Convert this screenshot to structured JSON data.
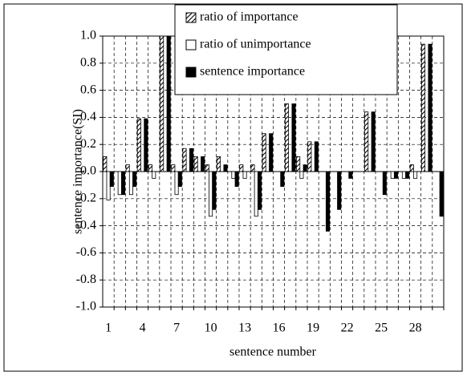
{
  "chart_data": {
    "type": "bar",
    "y_label": "sentence importance(SI)",
    "x_label": "sentence number",
    "categories": [
      "1",
      null,
      null,
      "4",
      null,
      null,
      "7",
      null,
      null,
      "10",
      null,
      null,
      "13",
      null,
      null,
      "16",
      null,
      null,
      "19",
      null,
      null,
      "22",
      null,
      null,
      "25",
      null,
      null,
      "28",
      null,
      null
    ],
    "series": [
      {
        "name": "ratio of importance",
        "color": "#000000",
        "pattern": "hatched",
        "values": [
          0.11,
          0,
          0.05,
          0.39,
          0.05,
          1.0,
          0.05,
          0.17,
          0.11,
          0.05,
          0.11,
          0,
          0.05,
          0.05,
          0.28,
          0,
          0.5,
          0.11,
          0.22,
          0,
          0,
          0,
          0,
          0.44,
          0,
          0,
          0,
          0.05,
          0.94,
          0
        ]
      },
      {
        "name": "ratio of unimportance",
        "color": "#ffffff",
        "pattern": "solid",
        "values": [
          -0.21,
          -0.17,
          -0.17,
          0,
          -0.05,
          0,
          -0.17,
          0,
          0,
          -0.33,
          0,
          -0.05,
          -0.05,
          -0.33,
          0,
          0,
          0,
          -0.05,
          0,
          0,
          0,
          0,
          0,
          0,
          0,
          -0.05,
          -0.05,
          -0.05,
          0,
          0
        ]
      },
      {
        "name": "sentence importance",
        "color": "#000000",
        "pattern": "solid",
        "values": [
          -0.11,
          -0.17,
          -0.11,
          0.39,
          0,
          1.0,
          -0.11,
          0.17,
          0.11,
          -0.28,
          0.05,
          -0.11,
          0,
          -0.28,
          0.28,
          -0.11,
          0.5,
          0.05,
          0.22,
          -0.44,
          -0.28,
          -0.05,
          0,
          0.44,
          -0.17,
          -0.05,
          -0.05,
          0,
          0.94,
          -0.33
        ]
      }
    ],
    "ylim": [
      -1.0,
      1.0
    ],
    "yticks": [
      {
        "value": -1.0,
        "label": "-1.0"
      },
      -0.8,
      -0.6,
      -0.4,
      -0.2,
      {
        "value": 0.0,
        "label": "0.0"
      },
      0.2,
      0.4,
      0.6,
      0.8,
      {
        "value": 1.0,
        "label": "1.0"
      }
    ],
    "grid": true
  }
}
